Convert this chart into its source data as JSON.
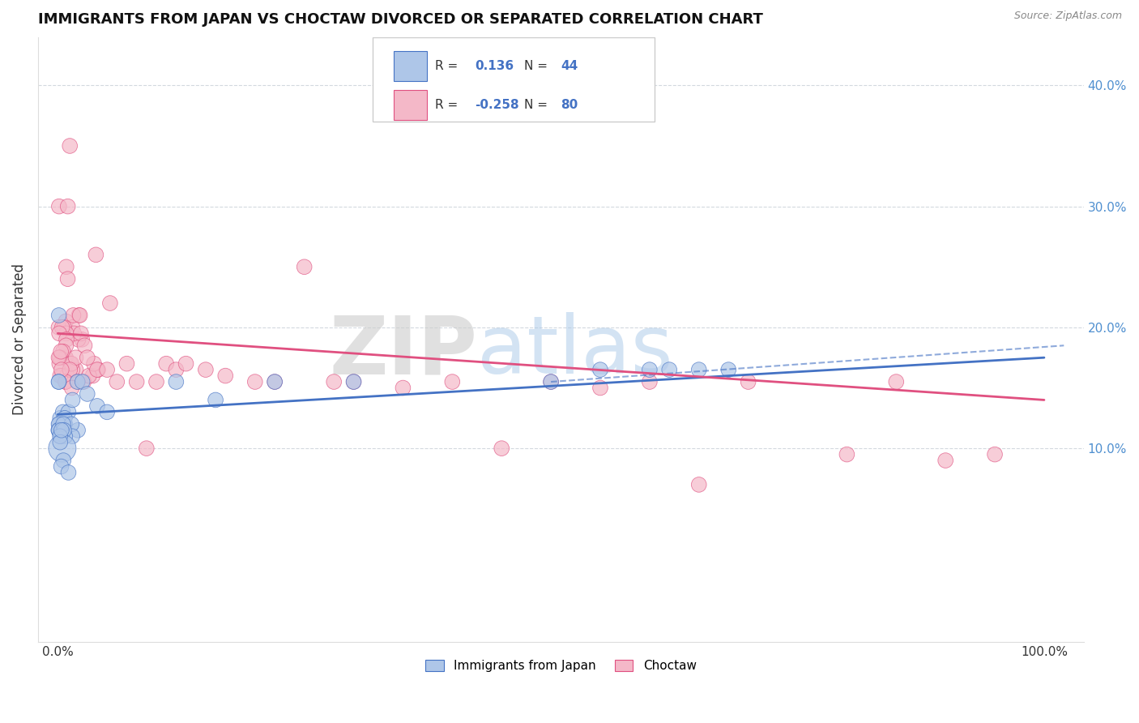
{
  "title": "IMMIGRANTS FROM JAPAN VS CHOCTAW DIVORCED OR SEPARATED CORRELATION CHART",
  "source": "Source: ZipAtlas.com",
  "ylabel": "Divorced or Separated",
  "ytick_vals": [
    0.1,
    0.2,
    0.3,
    0.4
  ],
  "legend_labels": [
    "Immigrants from Japan",
    "Choctaw"
  ],
  "r_blue": 0.136,
  "n_blue": 44,
  "r_pink": -0.258,
  "n_pink": 80,
  "blue_color": "#aec6e8",
  "pink_color": "#f4b8c8",
  "trendline_blue": "#4472c4",
  "trendline_pink": "#e05080",
  "background": "#ffffff",
  "grid_color": "#c8d0d8",
  "xlim": [
    -0.02,
    1.04
  ],
  "ylim": [
    -0.06,
    0.44
  ],
  "blue_trend": [
    0.128,
    0.175
  ],
  "pink_trend": [
    0.195,
    0.14
  ],
  "blue_trend_dashed_end": 0.185
}
